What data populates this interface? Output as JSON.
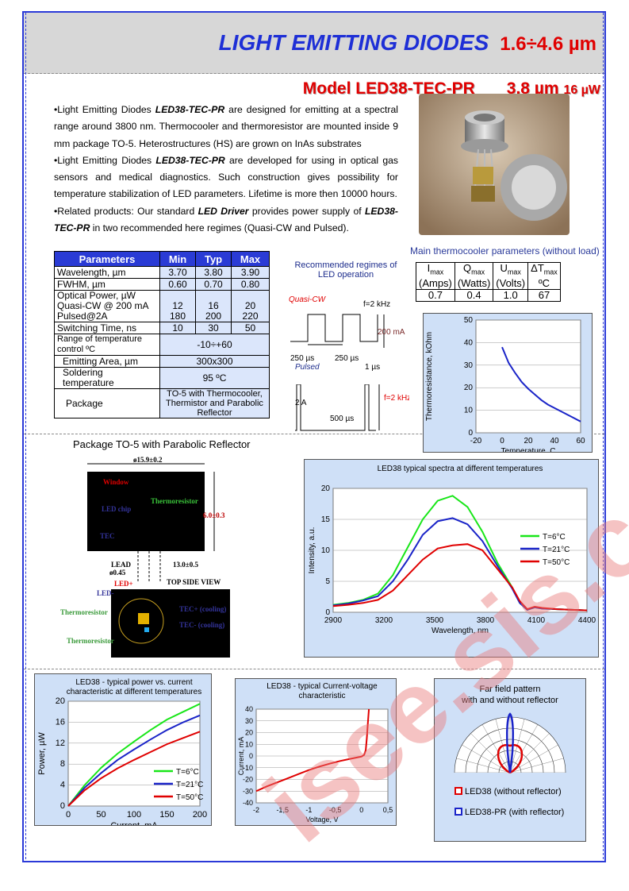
{
  "header": {
    "title": "LIGHT EMITTING DIODES",
    "range": "1.6÷4.6 µm"
  },
  "model": {
    "name": "Model  LED38-TEC-PR",
    "wavelength": "3.8 µm",
    "power": "16 µW"
  },
  "description": {
    "p1_pre": "•Light Emitting Diodes ",
    "p1_em": "LED38-TEC-PR",
    "p1_post": " are designed for emitting at a spectral range around 3800 nm. Thermocooler and thermoresistor are mounted inside 9 mm package TO-5. Heterostructures (HS) are grown on InAs substrates",
    "p2_pre": "•Light Emitting Diodes ",
    "p2_em": "LED38-TEC-PR",
    "p2_post": " are developed for using in optical gas sensors and medical diagnostics. Such construction gives possibility for temperature stabilization of LED parameters.  Lifetime is more then 10000 hours.",
    "p3_pre": "•Related products: Our standard ",
    "p3_em": "LED  Driver",
    "p3_mid": "  provides power supply of ",
    "p3_em2": "LED38-TEC-PR",
    "p3_post": " in two recommended here regimes (Quasi-CW and Pulsed)."
  },
  "params_table": {
    "headers": [
      "Parameters",
      "Min",
      "Typ",
      "Max"
    ],
    "rows": [
      {
        "name": "Wavelength, µm",
        "min": "3.70",
        "typ": "3.80",
        "max": "3.90"
      },
      {
        "name": "FWHM, µm",
        "min": "0.60",
        "typ": "0.70",
        "max": "0.80"
      },
      {
        "name1": "Optical Power, µW",
        "name2": "Quasi-CW @ 200 mA",
        "name3": "Pulsed@2A",
        "min1": "12",
        "min2": "180",
        "typ1": "16",
        "typ2": "200",
        "max1": "20",
        "max2": "220"
      },
      {
        "name": "Switching Time, ns",
        "min": "10",
        "typ": "30",
        "max": "50"
      },
      {
        "name1": "Range of temperature",
        "name2": "control  ºC",
        "value": "-10÷+60"
      },
      {
        "name": "Emitting Area, µm",
        "value": "300x300"
      },
      {
        "name1": "Soldering",
        "name2": "temperature",
        "value": "95 ºC"
      },
      {
        "name": "Package",
        "value1": "TO-5 with Thermocooler,",
        "value2": "Thermistor and Parabolic",
        "value3": "Reflector"
      }
    ]
  },
  "thermocooler": {
    "caption": "Main thermocooler parameters (without load)",
    "headers": [
      {
        "sym": "I",
        "sub": "max",
        "unit": "(Amps)"
      },
      {
        "sym": "Q",
        "sub": "max",
        "unit": "(Watts)"
      },
      {
        "sym": "U",
        "sub": "max",
        "unit": "(Volts)"
      },
      {
        "sym": "ΔT",
        "sub": "max",
        "unit": "ºC"
      }
    ],
    "values": [
      "0.7",
      "0.4",
      "1.0",
      "67"
    ]
  },
  "regimes": {
    "caption1": "Recommended regimes of",
    "caption2": "LED operation",
    "quasi": "Quasi-CW",
    "freq1": "f=2 kHz",
    "current1": "200 mA",
    "t1": "250 µs",
    "t2": "250 µs",
    "pulsed": "Pulsed",
    "t3": "1 µs",
    "current2": "2 A",
    "freq2": "f=2 kHz",
    "t4": "500 µs"
  },
  "package": {
    "caption": "Package TO-5 with Parabolic Reflector",
    "dia": "ø15.9±0.2",
    "window": "Window",
    "thermoresistor": "Thermoresistor",
    "ledchip": "LED chip",
    "tec": "TEC",
    "height": "6.0±0.3",
    "lead": "LEAD",
    "leaddia": "ø0.45",
    "leadlen": "13.0±0.5",
    "topview": "TOP SIDE VIEW",
    "ledp": "LED+",
    "led": "LED-",
    "thermo2": "Thermoresistor",
    "tecp": "TEC+ (cooling)",
    "tecm": "TEC- (cooling)",
    "thermo3": "Thermoresistor"
  },
  "colors": {
    "blue": "#1e2fd6",
    "red": "#e00000",
    "green": "#19e619",
    "navy": "#1a24c8",
    "chartbg": "#cfe0f7"
  },
  "chart_data": [
    {
      "type": "line",
      "ylabel": "Thermoresistance, kOhm",
      "xlabel": "Temperature, C",
      "xlim": [
        -20,
        60
      ],
      "ylim": [
        0,
        50
      ],
      "xticks": [
        "-20",
        "0",
        "20",
        "40",
        "60"
      ],
      "yticks": [
        "0",
        "10",
        "20",
        "30",
        "40",
        "50"
      ],
      "series": [
        {
          "x": [
            0,
            5,
            10,
            15,
            20,
            25,
            30,
            35,
            40,
            45,
            50,
            55,
            60
          ],
          "values": [
            38,
            31,
            26.5,
            22.5,
            19.5,
            17,
            14.5,
            12.5,
            11,
            9.5,
            8,
            6.5,
            5
          ]
        }
      ]
    },
    {
      "type": "line",
      "title": "LED38 typical spectra at different temperatures",
      "ylabel": "Intensity, a.u.",
      "xlabel": "Wavelength, nm",
      "xlim": [
        2900,
        4600
      ],
      "ylim": [
        0,
        20
      ],
      "xticks": [
        "2900",
        "3200",
        "3500",
        "3800",
        "4100",
        "4400"
      ],
      "yticks": [
        "0",
        "5",
        "10",
        "15",
        "20"
      ],
      "x": [
        2900,
        3000,
        3100,
        3200,
        3300,
        3400,
        3500,
        3600,
        3700,
        3800,
        3900,
        4000,
        4100,
        4150,
        4200,
        4250,
        4300,
        4400,
        4500,
        4600
      ],
      "series": [
        {
          "name": "T=6°C",
          "color": "#19e619",
          "values": [
            1.2,
            1.5,
            2,
            3,
            6,
            10.5,
            15,
            18,
            18.8,
            17,
            13,
            8,
            4,
            1.5,
            0.4,
            0.8,
            0.6,
            0.5,
            0.4,
            0.3
          ]
        },
        {
          "name": "T=21°C",
          "color": "#1a24c8",
          "values": [
            1.1,
            1.4,
            1.9,
            2.6,
            5,
            8.5,
            12.5,
            14.7,
            15.2,
            14.2,
            11.5,
            7.5,
            3.8,
            1.5,
            0.4,
            0.8,
            0.6,
            0.5,
            0.4,
            0.3
          ]
        },
        {
          "name": "T=50°C",
          "color": "#e00000",
          "values": [
            1,
            1.2,
            1.5,
            2,
            3.5,
            6,
            8.5,
            10.3,
            10.8,
            11,
            10,
            7,
            4,
            1.8,
            0.5,
            0.9,
            0.7,
            0.5,
            0.4,
            0.3
          ]
        }
      ]
    },
    {
      "type": "line",
      "title": "LED38 - typical power vs. current characteristic at different temperatures",
      "ylabel": "Power, µW",
      "xlabel": "Current, mA",
      "xlim": [
        0,
        200
      ],
      "ylim": [
        0,
        20
      ],
      "xticks": [
        "0",
        "50",
        "100",
        "150",
        "200"
      ],
      "yticks": [
        "0",
        "4",
        "8",
        "12",
        "16",
        "20"
      ],
      "x": [
        0,
        25,
        50,
        75,
        100,
        125,
        150,
        175,
        200
      ],
      "series": [
        {
          "name": "T=6°C",
          "color": "#19e619",
          "values": [
            0,
            4,
            7.3,
            10,
            12.3,
            14.5,
            16.5,
            18,
            19.5
          ]
        },
        {
          "name": "T=21°C",
          "color": "#1a24c8",
          "values": [
            0,
            3.5,
            6.3,
            8.8,
            10.8,
            12.7,
            14.5,
            16,
            17.3
          ]
        },
        {
          "name": "T=50°C",
          "color": "#e00000",
          "values": [
            0,
            3,
            5.3,
            7.2,
            8.8,
            10.3,
            11.8,
            13,
            14.2
          ]
        }
      ]
    },
    {
      "type": "line",
      "title": "LED38 - typical Current-voltage characteristic",
      "ylabel": "Current, mA",
      "xlabel": "Voltage, V",
      "xlim": [
        -2,
        0.5
      ],
      "ylim": [
        -40,
        40
      ],
      "xticks": [
        "-2",
        "-1,5",
        "-1",
        "-0,5",
        "0",
        "0,5"
      ],
      "yticks": [
        "-40",
        "-30",
        "-20",
        "-10",
        "0",
        "10",
        "20",
        "30",
        "40"
      ],
      "series": [
        {
          "x": [
            -2,
            -1.8,
            -1.6,
            -1.4,
            -1.2,
            -1,
            -0.8,
            -0.6,
            -0.4,
            -0.2,
            0,
            0.05,
            0.08,
            0.1,
            0.12,
            0.14
          ],
          "values": [
            -30,
            -26,
            -22.5,
            -19,
            -15.5,
            -12,
            -9,
            -6.5,
            -4.2,
            -2.3,
            -0.5,
            1,
            5,
            15,
            28,
            40
          ],
          "color": "#e00000"
        }
      ]
    },
    {
      "type": "polar",
      "title1": "Far field pattern",
      "title2": "with and without reflector",
      "series": [
        {
          "name": "LED38 (without reflector)",
          "color": "#e00000"
        },
        {
          "name": "LED38-PR (with reflector)",
          "color": "#1a24c8"
        }
      ]
    }
  ]
}
